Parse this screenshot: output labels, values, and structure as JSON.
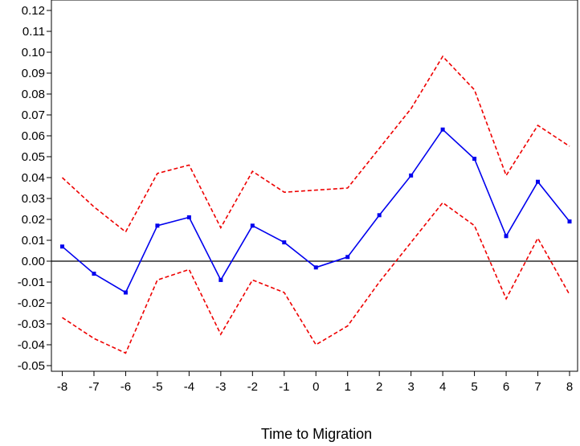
{
  "chart_data": {
    "type": "line",
    "title": "",
    "xlabel": "Time to Migration",
    "ylabel": "",
    "x": [
      -8,
      -7,
      -6,
      -5,
      -4,
      -3,
      -2,
      -1,
      0,
      1,
      2,
      3,
      4,
      5,
      6,
      7,
      8
    ],
    "xlim": [
      -8.2,
      8.1
    ],
    "ylim": [
      -0.055,
      0.125
    ],
    "x_ticks": [
      "-8",
      "-7",
      "-6",
      "-5",
      "-4",
      "-3",
      "-2",
      "-1",
      "0",
      "1",
      "2",
      "3",
      "4",
      "5",
      "6",
      "7",
      "8"
    ],
    "y_ticks": [
      "0.12",
      "0.11",
      "0.10",
      "0.09",
      "0.08",
      "0.07",
      "0.06",
      "0.05",
      "0.04",
      "0.03",
      "0.02",
      "0.01",
      "0.00",
      "-0.01",
      "-0.02",
      "-0.03",
      "-0.04",
      "-0.05"
    ],
    "zero_line": true,
    "grid": false,
    "series": [
      {
        "role": "estimate",
        "color": "#0000ee",
        "dash": "solid",
        "markers": true,
        "values": [
          0.007,
          -0.006,
          -0.015,
          0.017,
          0.021,
          -0.009,
          0.017,
          0.009,
          -0.003,
          0.002,
          0.022,
          0.041,
          0.063,
          0.049,
          0.012,
          0.038,
          0.019
        ]
      },
      {
        "role": "upper-ci",
        "color": "#ee0000",
        "dash": "dashed",
        "markers": false,
        "values": [
          0.04,
          0.026,
          0.014,
          0.042,
          0.046,
          0.016,
          0.043,
          0.033,
          0.034,
          0.035,
          0.054,
          0.073,
          0.098,
          0.082,
          0.041,
          0.065,
          0.055
        ]
      },
      {
        "role": "lower-ci",
        "color": "#ee0000",
        "dash": "dashed",
        "markers": false,
        "values": [
          -0.027,
          -0.037,
          -0.044,
          -0.009,
          -0.004,
          -0.035,
          -0.009,
          -0.015,
          -0.04,
          -0.031,
          -0.01,
          0.009,
          0.028,
          0.017,
          -0.018,
          0.011,
          -0.016
        ]
      }
    ]
  }
}
